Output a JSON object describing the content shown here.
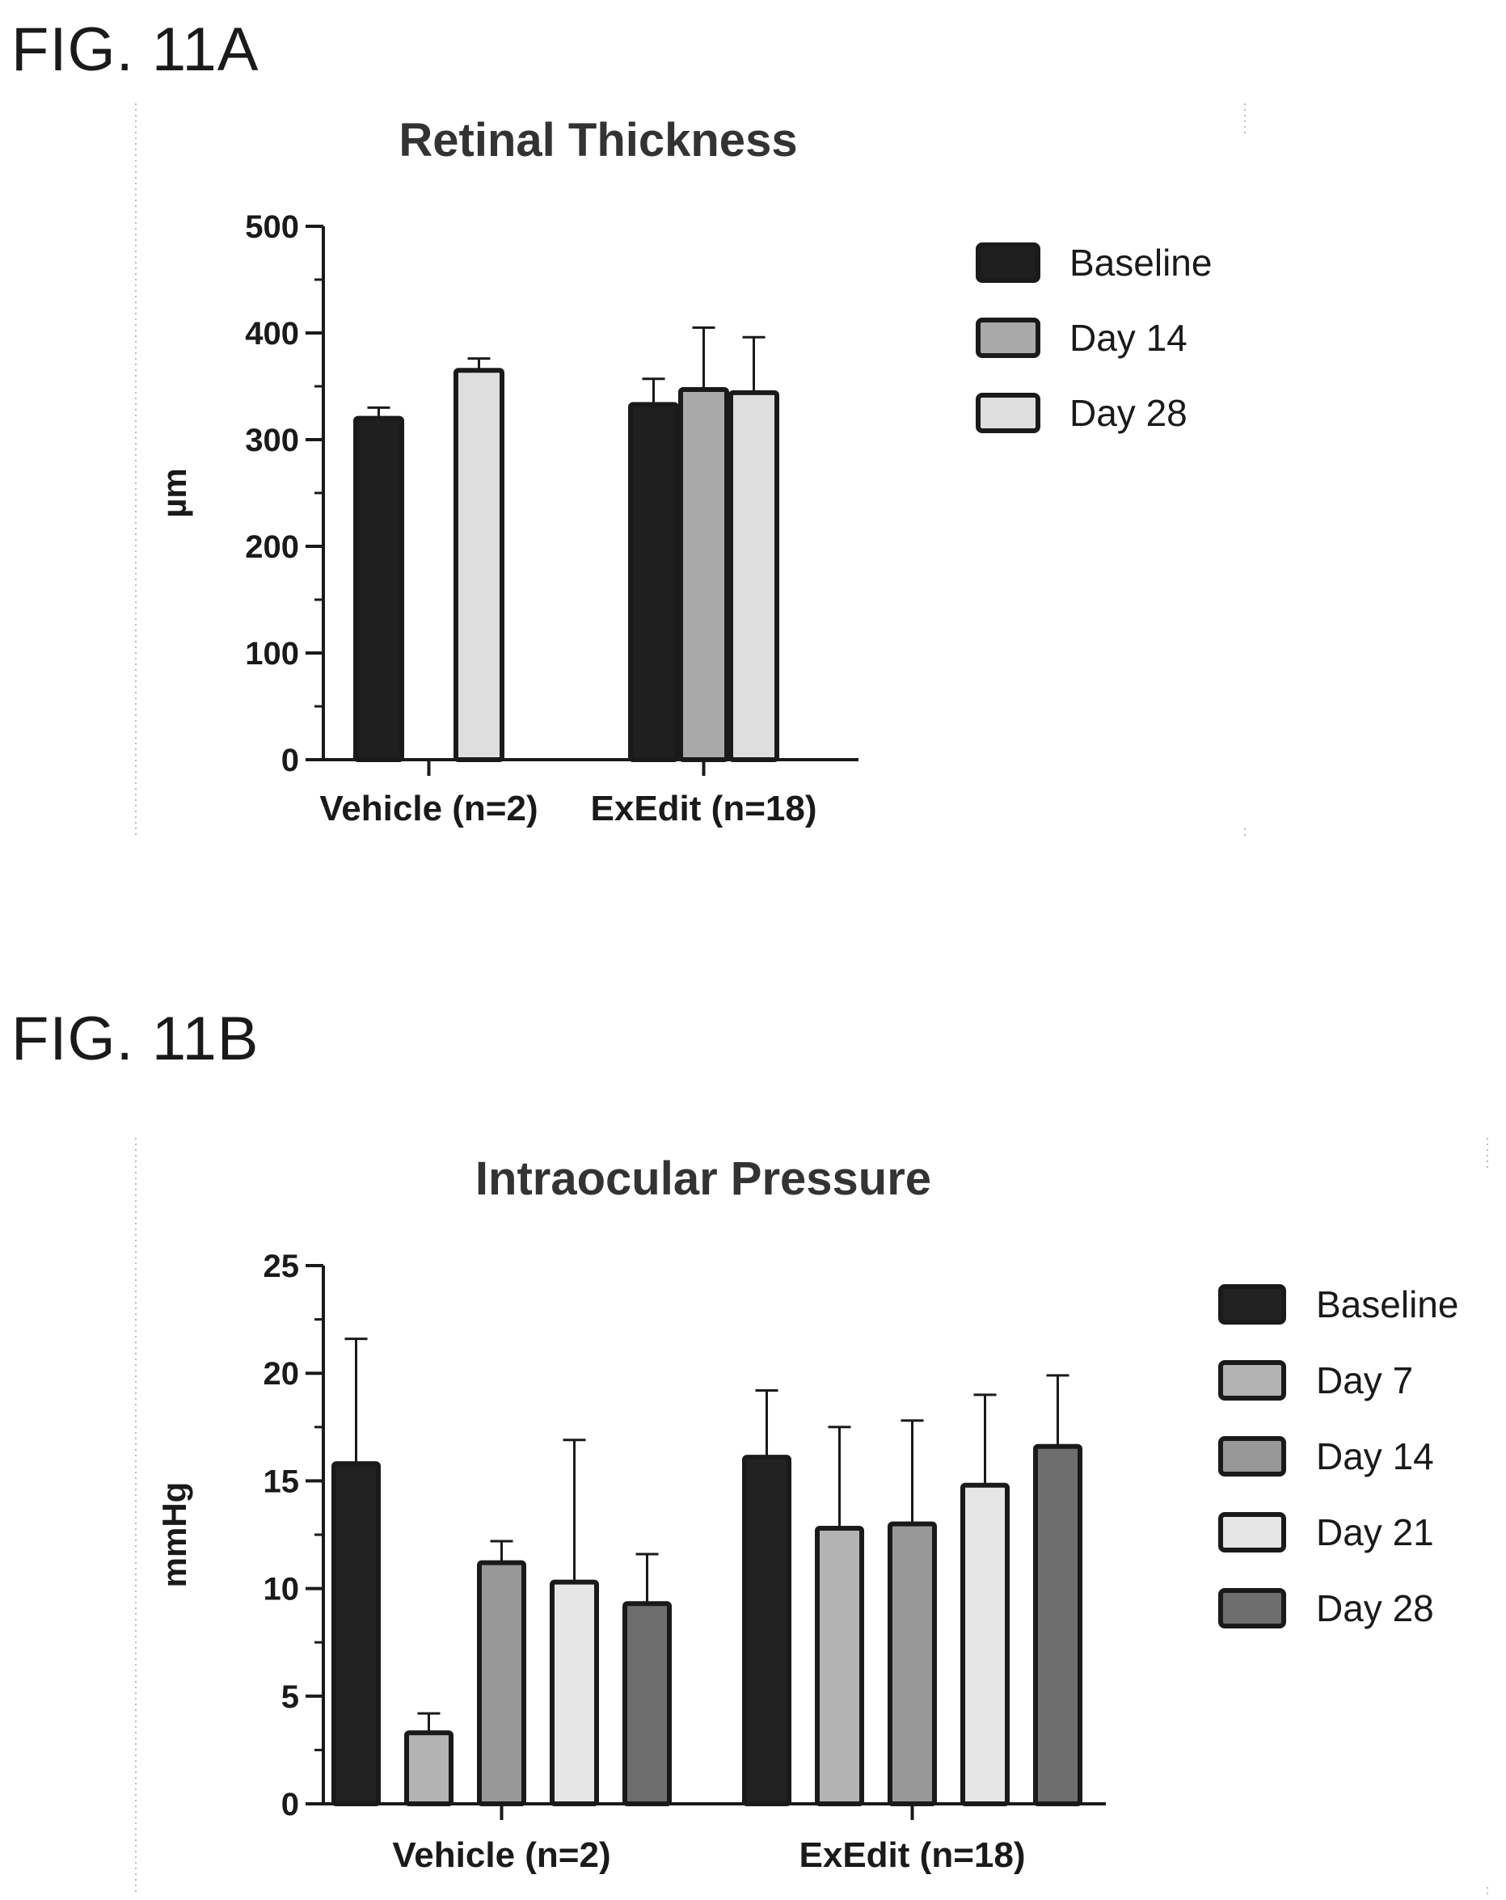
{
  "figures": [
    {
      "label": "FIG. 11A"
    },
    {
      "label": "FIG. 11B"
    }
  ],
  "chart_data": [
    {
      "type": "bar",
      "title": "Retinal Thickness",
      "xlabel": "",
      "ylabel": "µm",
      "ylim": [
        0,
        500
      ],
      "yticks": [
        0,
        100,
        200,
        300,
        400,
        500
      ],
      "categories": [
        "Vehicle (n=2)",
        "ExEdit (n=18)"
      ],
      "error_bars": true,
      "legend_position": "right",
      "series": [
        {
          "name": "Baseline",
          "color": "#1f1f1f",
          "values": [
            320,
            333
          ],
          "errors": [
            10,
            24
          ]
        },
        {
          "name": "Day 14",
          "color": "#a9a9a9",
          "values": [
            null,
            347
          ],
          "errors": [
            null,
            58
          ]
        },
        {
          "name": "Day 28",
          "color": "#dedede",
          "values": [
            365,
            344
          ],
          "errors": [
            11,
            52
          ]
        }
      ]
    },
    {
      "type": "bar",
      "title": "Intraocular Pressure",
      "xlabel": "",
      "ylabel": "mmHg",
      "ylim": [
        0,
        25
      ],
      "yticks": [
        0,
        5,
        10,
        15,
        20,
        25
      ],
      "categories": [
        "Vehicle (n=2)",
        "ExEdit (n=18)"
      ],
      "error_bars": true,
      "legend_position": "right",
      "series": [
        {
          "name": "Baseline",
          "color": "#222222",
          "values": [
            15.8,
            16.1
          ],
          "errors": [
            5.8,
            3.1
          ]
        },
        {
          "name": "Day 7",
          "color": "#b3b3b3",
          "values": [
            3.3,
            12.8
          ],
          "errors": [
            0.9,
            4.7
          ]
        },
        {
          "name": "Day 14",
          "color": "#989898",
          "values": [
            11.2,
            13.0
          ],
          "errors": [
            1.0,
            4.8
          ]
        },
        {
          "name": "Day 21",
          "color": "#e6e6e6",
          "values": [
            10.3,
            14.8
          ],
          "errors": [
            6.6,
            4.2
          ]
        },
        {
          "name": "Day 28",
          "color": "#6e6e6e",
          "values": [
            9.3,
            16.6
          ],
          "errors": [
            2.3,
            3.3
          ]
        }
      ]
    }
  ]
}
